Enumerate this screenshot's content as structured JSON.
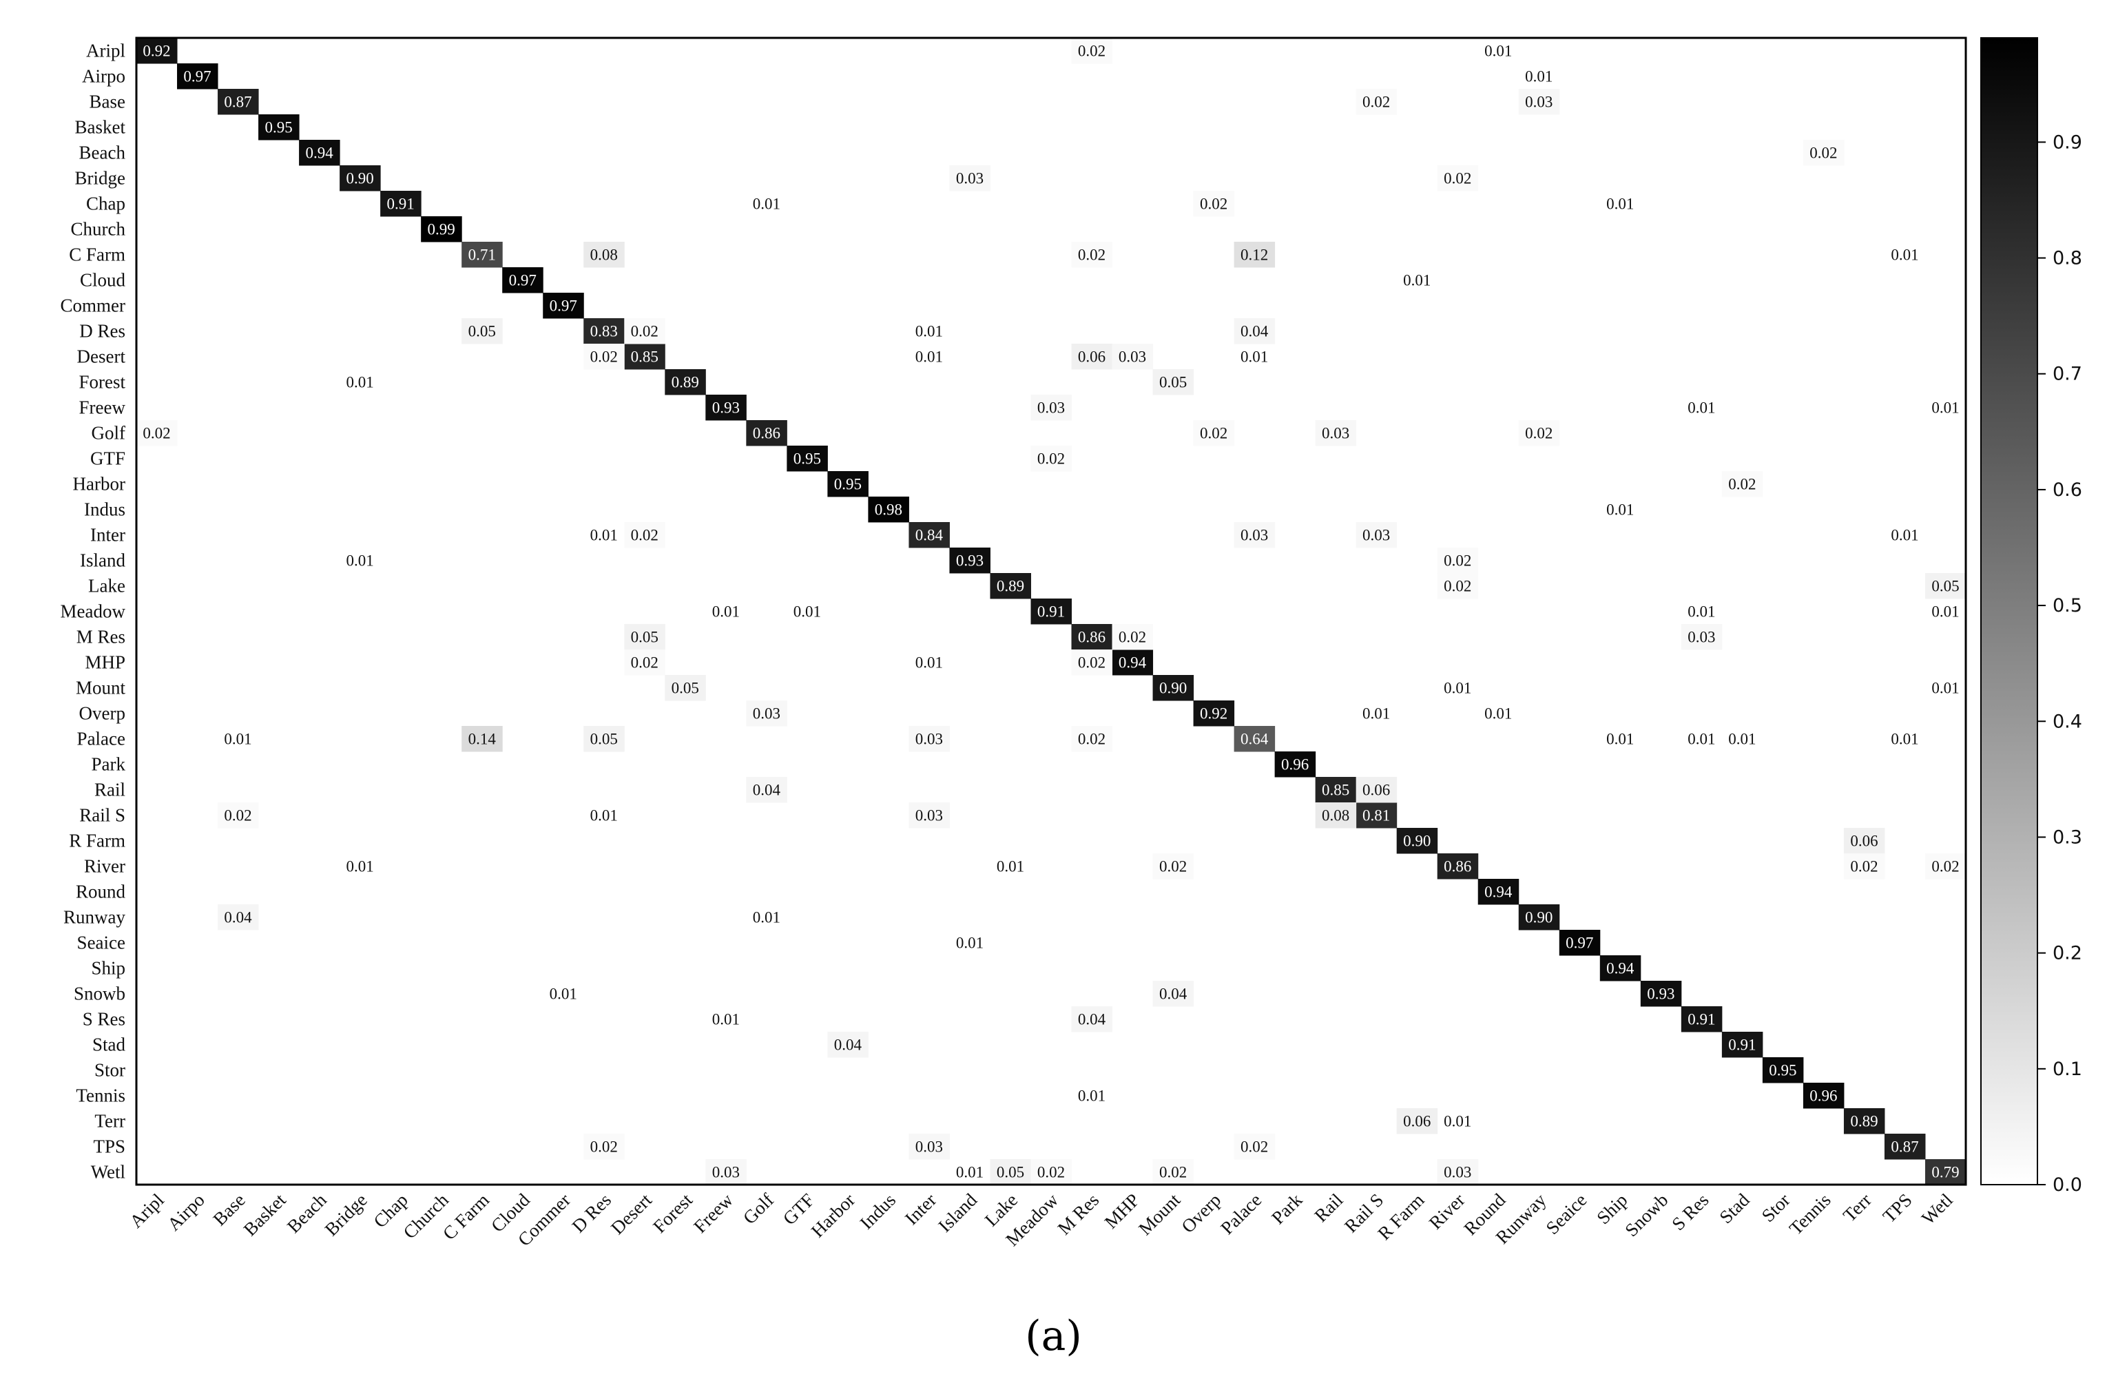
{
  "caption": "(a)",
  "chart_data": {
    "type": "heatmap",
    "title": "",
    "xlabel": "",
    "ylabel": "",
    "classes": [
      "Aripl",
      "Airpo",
      "Base",
      "Basket",
      "Beach",
      "Bridge",
      "Chap",
      "Church",
      "C Farm",
      "Cloud",
      "Commer",
      "D Res",
      "Desert",
      "Forest",
      "Freew",
      "Golf",
      "GTF",
      "Harbor",
      "Indus",
      "Inter",
      "Island",
      "Lake",
      "Meadow",
      "M Res",
      "MHP",
      "Mount",
      "Overp",
      "Palace",
      "Park",
      "Rail",
      "Rail S",
      "R Farm",
      "River",
      "Round",
      "Runway",
      "Seaice",
      "Ship",
      "Snowb",
      "S Res",
      "Stad",
      "Stor",
      "Tennis",
      "Terr",
      "TPS",
      "Wetl"
    ],
    "diagonal": [
      0.92,
      0.97,
      0.87,
      0.95,
      0.94,
      0.9,
      0.91,
      0.99,
      0.71,
      0.97,
      0.97,
      0.83,
      0.85,
      0.89,
      0.93,
      0.86,
      0.95,
      0.95,
      0.98,
      0.84,
      0.93,
      0.89,
      0.91,
      0.86,
      0.94,
      0.9,
      0.92,
      0.64,
      0.96,
      0.85,
      0.81,
      0.9,
      0.86,
      0.94,
      0.9,
      0.97,
      0.94,
      0.93,
      0.91,
      0.91,
      0.95,
      0.96,
      0.89,
      0.87,
      0.79
    ],
    "off_diagonal": [
      {
        "row": "Aripl",
        "col": "M Res",
        "value": 0.02
      },
      {
        "row": "Aripl",
        "col": "Round",
        "value": 0.01
      },
      {
        "row": "Airpo",
        "col": "Runway",
        "value": 0.01
      },
      {
        "row": "Base",
        "col": "Rail S",
        "value": 0.02
      },
      {
        "row": "Base",
        "col": "Runway",
        "value": 0.03
      },
      {
        "row": "Beach",
        "col": "Tennis",
        "value": 0.02
      },
      {
        "row": "Bridge",
        "col": "Island",
        "value": 0.03
      },
      {
        "row": "Bridge",
        "col": "River",
        "value": 0.02
      },
      {
        "row": "Chap",
        "col": "Golf",
        "value": 0.01
      },
      {
        "row": "Chap",
        "col": "Overp",
        "value": 0.02
      },
      {
        "row": "Chap",
        "col": "Ship",
        "value": 0.01
      },
      {
        "row": "C Farm",
        "col": "D Res",
        "value": 0.08
      },
      {
        "row": "C Farm",
        "col": "M Res",
        "value": 0.02
      },
      {
        "row": "C Farm",
        "col": "Palace",
        "value": 0.12
      },
      {
        "row": "C Farm",
        "col": "TPS",
        "value": 0.01
      },
      {
        "row": "Cloud",
        "col": "R Farm",
        "value": 0.01
      },
      {
        "row": "D Res",
        "col": "C Farm",
        "value": 0.05
      },
      {
        "row": "D Res",
        "col": "Desert",
        "value": 0.02
      },
      {
        "row": "D Res",
        "col": "Inter",
        "value": 0.01
      },
      {
        "row": "D Res",
        "col": "Palace",
        "value": 0.04
      },
      {
        "row": "Desert",
        "col": "D Res",
        "value": 0.02
      },
      {
        "row": "Desert",
        "col": "Inter",
        "value": 0.01
      },
      {
        "row": "Desert",
        "col": "M Res",
        "value": 0.06
      },
      {
        "row": "Desert",
        "col": "MHP",
        "value": 0.03
      },
      {
        "row": "Desert",
        "col": "Palace",
        "value": 0.01
      },
      {
        "row": "Forest",
        "col": "Bridge",
        "value": 0.01
      },
      {
        "row": "Forest",
        "col": "Mount",
        "value": 0.05
      },
      {
        "row": "Freew",
        "col": "Meadow",
        "value": 0.03
      },
      {
        "row": "Freew",
        "col": "S Res",
        "value": 0.01
      },
      {
        "row": "Freew",
        "col": "Wetl",
        "value": 0.01
      },
      {
        "row": "Golf",
        "col": "Aripl",
        "value": 0.02
      },
      {
        "row": "Golf",
        "col": "Overp",
        "value": 0.02
      },
      {
        "row": "Golf",
        "col": "Rail",
        "value": 0.03
      },
      {
        "row": "Golf",
        "col": "Runway",
        "value": 0.02
      },
      {
        "row": "GTF",
        "col": "Meadow",
        "value": 0.02
      },
      {
        "row": "Harbor",
        "col": "Stad",
        "value": 0.02
      },
      {
        "row": "Indus",
        "col": "Ship",
        "value": 0.01
      },
      {
        "row": "Inter",
        "col": "D Res",
        "value": 0.01
      },
      {
        "row": "Inter",
        "col": "Desert",
        "value": 0.02
      },
      {
        "row": "Inter",
        "col": "Palace",
        "value": 0.03
      },
      {
        "row": "Inter",
        "col": "Rail S",
        "value": 0.03
      },
      {
        "row": "Inter",
        "col": "TPS",
        "value": 0.01
      },
      {
        "row": "Island",
        "col": "Bridge",
        "value": 0.01
      },
      {
        "row": "Island",
        "col": "River",
        "value": 0.02
      },
      {
        "row": "Lake",
        "col": "River",
        "value": 0.02
      },
      {
        "row": "Lake",
        "col": "Wetl",
        "value": 0.05
      },
      {
        "row": "Meadow",
        "col": "Freew",
        "value": 0.01
      },
      {
        "row": "Meadow",
        "col": "GTF",
        "value": 0.01
      },
      {
        "row": "Meadow",
        "col": "S Res",
        "value": 0.01
      },
      {
        "row": "Meadow",
        "col": "Wetl",
        "value": 0.01
      },
      {
        "row": "M Res",
        "col": "Desert",
        "value": 0.05
      },
      {
        "row": "M Res",
        "col": "MHP",
        "value": 0.02
      },
      {
        "row": "M Res",
        "col": "S Res",
        "value": 0.03
      },
      {
        "row": "MHP",
        "col": "Desert",
        "value": 0.02
      },
      {
        "row": "MHP",
        "col": "Inter",
        "value": 0.01
      },
      {
        "row": "MHP",
        "col": "M Res",
        "value": 0.02
      },
      {
        "row": "Mount",
        "col": "Forest",
        "value": 0.05
      },
      {
        "row": "Mount",
        "col": "River",
        "value": 0.01
      },
      {
        "row": "Mount",
        "col": "Wetl",
        "value": 0.01
      },
      {
        "row": "Overp",
        "col": "Golf",
        "value": 0.03
      },
      {
        "row": "Overp",
        "col": "Rail S",
        "value": 0.01
      },
      {
        "row": "Overp",
        "col": "Round",
        "value": 0.01
      },
      {
        "row": "Palace",
        "col": "Base",
        "value": 0.01
      },
      {
        "row": "Palace",
        "col": "C Farm",
        "value": 0.14
      },
      {
        "row": "Palace",
        "col": "D Res",
        "value": 0.05
      },
      {
        "row": "Palace",
        "col": "Inter",
        "value": 0.03
      },
      {
        "row": "Palace",
        "col": "M Res",
        "value": 0.02
      },
      {
        "row": "Palace",
        "col": "Ship",
        "value": 0.01
      },
      {
        "row": "Palace",
        "col": "S Res",
        "value": 0.01
      },
      {
        "row": "Palace",
        "col": "Stad",
        "value": 0.01
      },
      {
        "row": "Palace",
        "col": "TPS",
        "value": 0.01
      },
      {
        "row": "Rail",
        "col": "Golf",
        "value": 0.04
      },
      {
        "row": "Rail",
        "col": "Rail S",
        "value": 0.06
      },
      {
        "row": "Rail S",
        "col": "Base",
        "value": 0.02
      },
      {
        "row": "Rail S",
        "col": "D Res",
        "value": 0.01
      },
      {
        "row": "Rail S",
        "col": "Inter",
        "value": 0.03
      },
      {
        "row": "Rail S",
        "col": "Rail",
        "value": 0.08
      },
      {
        "row": "R Farm",
        "col": "Terr",
        "value": 0.06
      },
      {
        "row": "River",
        "col": "Bridge",
        "value": 0.01
      },
      {
        "row": "River",
        "col": "Lake",
        "value": 0.01
      },
      {
        "row": "River",
        "col": "Mount",
        "value": 0.02
      },
      {
        "row": "River",
        "col": "Terr",
        "value": 0.02
      },
      {
        "row": "River",
        "col": "Wetl",
        "value": 0.02
      },
      {
        "row": "Runway",
        "col": "Base",
        "value": 0.04
      },
      {
        "row": "Runway",
        "col": "Golf",
        "value": 0.01
      },
      {
        "row": "Seaice",
        "col": "Island",
        "value": 0.01
      },
      {
        "row": "Snowb",
        "col": "Commer",
        "value": 0.01
      },
      {
        "row": "Snowb",
        "col": "Mount",
        "value": 0.04
      },
      {
        "row": "S Res",
        "col": "Freew",
        "value": 0.01
      },
      {
        "row": "S Res",
        "col": "M Res",
        "value": 0.04
      },
      {
        "row": "Stad",
        "col": "Harbor",
        "value": 0.04
      },
      {
        "row": "Tennis",
        "col": "M Res",
        "value": 0.01
      },
      {
        "row": "Terr",
        "col": "R Farm",
        "value": 0.06
      },
      {
        "row": "Terr",
        "col": "River",
        "value": 0.01
      },
      {
        "row": "TPS",
        "col": "D Res",
        "value": 0.02
      },
      {
        "row": "TPS",
        "col": "Inter",
        "value": 0.03
      },
      {
        "row": "TPS",
        "col": "Palace",
        "value": 0.02
      },
      {
        "row": "Wetl",
        "col": "Freew",
        "value": 0.03
      },
      {
        "row": "Wetl",
        "col": "Island",
        "value": 0.01
      },
      {
        "row": "Wetl",
        "col": "Lake",
        "value": 0.05
      },
      {
        "row": "Wetl",
        "col": "Meadow",
        "value": 0.02
      },
      {
        "row": "Wetl",
        "col": "Mount",
        "value": 0.02
      },
      {
        "row": "Wetl",
        "col": "River",
        "value": 0.03
      }
    ],
    "value_range": [
      0.0,
      0.99
    ],
    "colormap": {
      "low": "#ffffff",
      "high": "#000000"
    },
    "colorbar_ticks": [
      "0.0",
      "0.1",
      "0.2",
      "0.3",
      "0.4",
      "0.5",
      "0.6",
      "0.7",
      "0.8",
      "0.9"
    ],
    "grid": false,
    "legend": "colorbar right"
  }
}
